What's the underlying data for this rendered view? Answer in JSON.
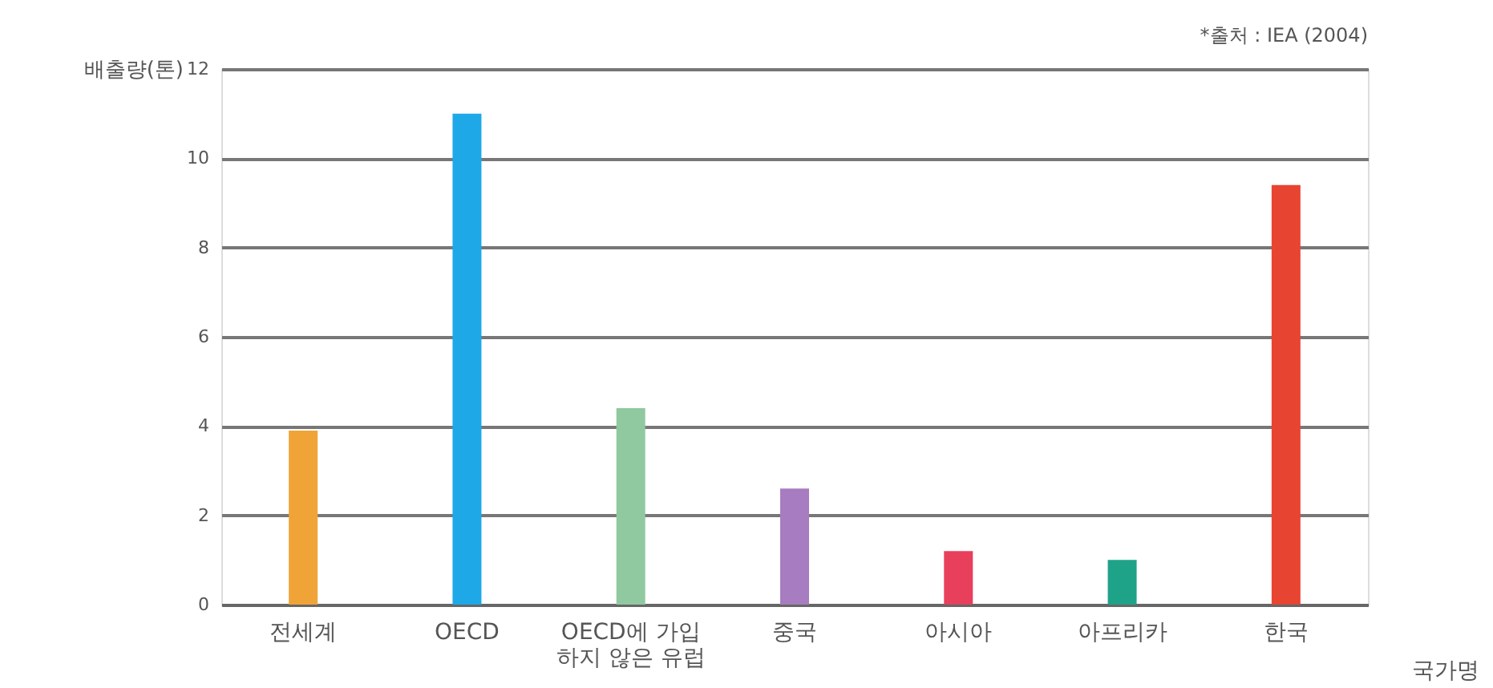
{
  "chart_data": {
    "type": "bar",
    "ylabel": "배출량(톤)",
    "xlabel": "국가명",
    "annotations": [
      "*출처 : IEA (2004)"
    ],
    "categories": [
      "전세계",
      "OECD",
      "OECD에 가입\n하지 않은 유럽",
      "중국",
      "아시아",
      "아프리카",
      "한국"
    ],
    "values": [
      3.9,
      11.0,
      4.4,
      2.6,
      1.2,
      1.0,
      9.4
    ],
    "colors": [
      "#f0a438",
      "#1ea8e8",
      "#90c8a0",
      "#a87cc0",
      "#e8405c",
      "#1fa388",
      "#e84432"
    ],
    "ylim": [
      0,
      12
    ],
    "yticks": [
      0,
      2,
      4,
      6,
      8,
      10,
      12
    ],
    "grid": "y",
    "legend": false
  }
}
